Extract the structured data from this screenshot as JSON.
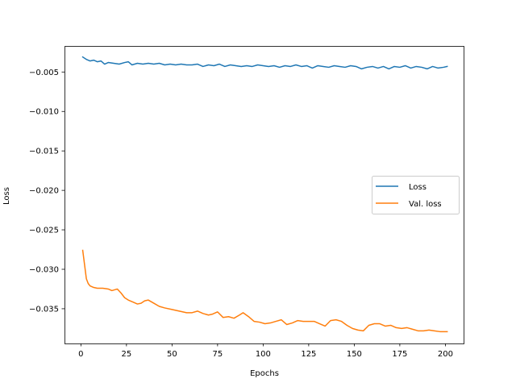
{
  "chart_data": {
    "type": "line",
    "title": "",
    "xlabel": "Epochs",
    "ylabel": "Loss",
    "xlim": [
      -9,
      210
    ],
    "ylim": [
      -0.0394,
      -0.0017
    ],
    "xticks": [
      0,
      25,
      50,
      75,
      100,
      125,
      150,
      175,
      200
    ],
    "xtick_labels": [
      "0",
      "25",
      "50",
      "75",
      "100",
      "125",
      "150",
      "175",
      "200"
    ],
    "yticks": [
      -0.005,
      -0.01,
      -0.015,
      -0.02,
      -0.025,
      -0.03,
      -0.035
    ],
    "ytick_labels": [
      "−0.005",
      "−0.010",
      "−0.015",
      "−0.020",
      "−0.025",
      "−0.030",
      "−0.035"
    ],
    "grid": false,
    "legend_position": "center-right",
    "series": [
      {
        "name": "Loss",
        "color": "#1f77b4",
        "x": [
          1,
          3,
          5,
          7,
          9,
          11,
          13,
          15,
          18,
          21,
          24,
          26,
          28,
          31,
          34,
          37,
          40,
          43,
          46,
          49,
          52,
          55,
          58,
          61,
          64,
          67,
          70,
          73,
          76,
          79,
          82,
          85,
          88,
          91,
          94,
          97,
          100,
          103,
          106,
          109,
          112,
          115,
          118,
          121,
          124,
          127,
          130,
          133,
          136,
          139,
          142,
          145,
          148,
          151,
          154,
          157,
          160,
          163,
          166,
          169,
          172,
          175,
          178,
          181,
          184,
          187,
          190,
          193,
          196,
          199,
          201
        ],
        "y": [
          -0.0031,
          -0.0034,
          -0.0036,
          -0.0035,
          -0.0037,
          -0.0036,
          -0.004,
          -0.0038,
          -0.0039,
          -0.004,
          -0.0038,
          -0.0037,
          -0.0041,
          -0.0039,
          -0.004,
          -0.0039,
          -0.004,
          -0.0039,
          -0.0041,
          -0.004,
          -0.0041,
          -0.004,
          -0.0041,
          -0.0041,
          -0.004,
          -0.0043,
          -0.0041,
          -0.0042,
          -0.004,
          -0.0043,
          -0.0041,
          -0.0042,
          -0.0043,
          -0.0042,
          -0.0043,
          -0.0041,
          -0.0042,
          -0.0043,
          -0.0042,
          -0.0044,
          -0.0042,
          -0.0043,
          -0.0041,
          -0.0043,
          -0.0042,
          -0.0045,
          -0.0042,
          -0.0043,
          -0.0044,
          -0.0042,
          -0.0043,
          -0.0044,
          -0.0042,
          -0.0043,
          -0.0046,
          -0.0044,
          -0.0043,
          -0.0045,
          -0.0043,
          -0.0046,
          -0.0043,
          -0.0044,
          -0.0042,
          -0.0045,
          -0.0043,
          -0.0044,
          -0.0046,
          -0.0043,
          -0.0045,
          -0.0044,
          -0.0043
        ]
      },
      {
        "name": "Val. loss",
        "color": "#ff7f0e",
        "x": [
          1,
          2,
          3,
          4,
          5,
          7,
          9,
          12,
          15,
          17,
          20,
          22,
          24,
          26,
          29,
          31,
          33,
          35,
          37,
          40,
          43,
          46,
          50,
          54,
          58,
          61,
          64,
          67,
          70,
          72,
          75,
          78,
          81,
          84,
          87,
          89,
          92,
          95,
          98,
          101,
          104,
          107,
          110,
          113,
          116,
          119,
          122,
          125,
          128,
          131,
          134,
          137,
          140,
          143,
          146,
          149,
          152,
          155,
          158,
          161,
          164,
          167,
          170,
          173,
          176,
          179,
          182,
          185,
          188,
          191,
          194,
          197,
          201
        ],
        "y": [
          -0.0276,
          -0.0294,
          -0.0312,
          -0.0318,
          -0.0321,
          -0.0323,
          -0.0324,
          -0.0324,
          -0.0325,
          -0.0327,
          -0.0325,
          -0.033,
          -0.0336,
          -0.0339,
          -0.0342,
          -0.0344,
          -0.0343,
          -0.034,
          -0.0339,
          -0.0343,
          -0.0347,
          -0.0349,
          -0.0351,
          -0.0353,
          -0.0355,
          -0.0355,
          -0.0353,
          -0.0356,
          -0.0358,
          -0.0357,
          -0.0354,
          -0.0361,
          -0.036,
          -0.0362,
          -0.0358,
          -0.0355,
          -0.036,
          -0.0366,
          -0.0367,
          -0.0369,
          -0.0368,
          -0.0366,
          -0.0364,
          -0.037,
          -0.0368,
          -0.0365,
          -0.0366,
          -0.0366,
          -0.0366,
          -0.0369,
          -0.0372,
          -0.0365,
          -0.0364,
          -0.0366,
          -0.0371,
          -0.0375,
          -0.0377,
          -0.0378,
          -0.0371,
          -0.0369,
          -0.0369,
          -0.0372,
          -0.0371,
          -0.0374,
          -0.0375,
          -0.0374,
          -0.0376,
          -0.0378,
          -0.0378,
          -0.0377,
          -0.0378,
          -0.0379,
          -0.0379
        ]
      }
    ]
  }
}
